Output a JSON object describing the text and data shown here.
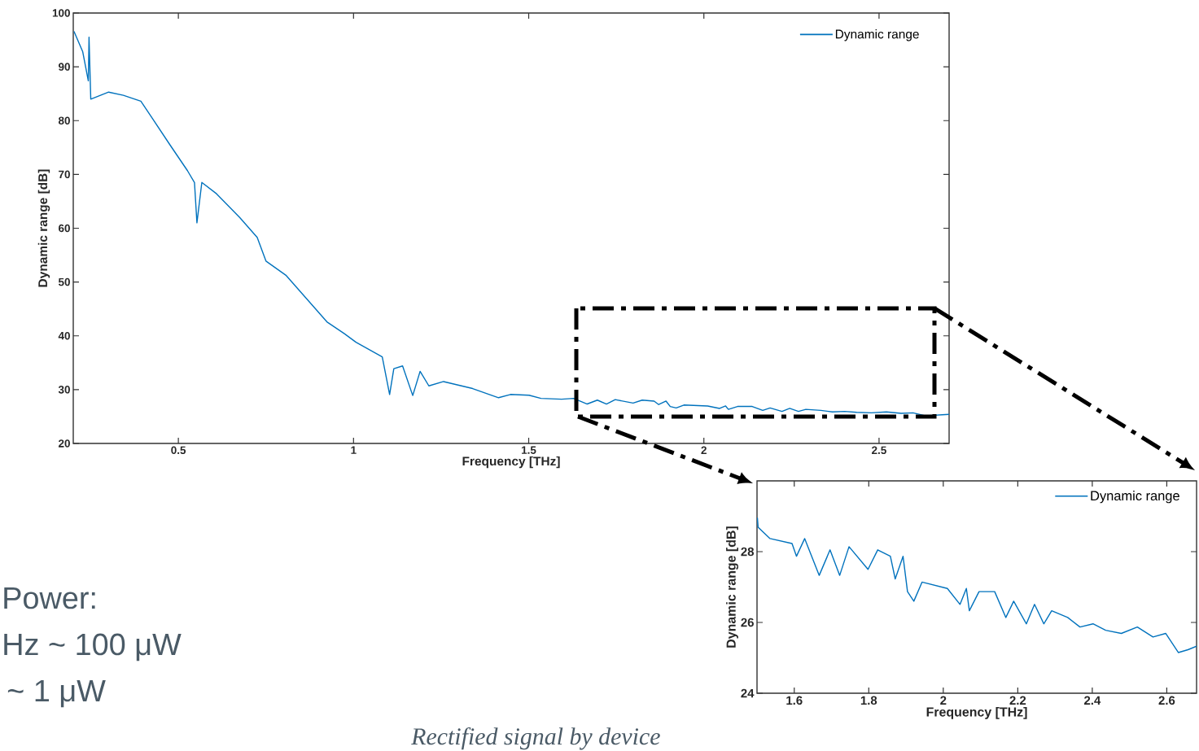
{
  "chart_data": [
    {
      "type": "line",
      "xlabel": "Frequency [THz]",
      "ylabel": "Dynamic range [dB]",
      "xlim": [
        0.2,
        2.7
      ],
      "ylim": [
        20,
        100
      ],
      "xticks": [
        0.5,
        1,
        1.5,
        2,
        2.5
      ],
      "yticks": [
        20,
        30,
        40,
        50,
        60,
        70,
        80,
        90,
        100
      ],
      "legend": "top right",
      "grid": false,
      "marker": "none",
      "line_style": "solid",
      "annotations": [
        "Power:",
        "Hz ~ 100 μW",
        "~ 1 μW",
        "Rectified signal by device"
      ],
      "series": [
        {
          "name": "Dynamic range",
          "color": "#0072bd",
          "x": [
            0.202,
            0.227,
            0.243,
            0.245,
            0.25,
            0.301,
            0.343,
            0.393,
            0.426,
            0.476,
            0.526,
            0.546,
            0.553,
            0.567,
            0.609,
            0.675,
            0.725,
            0.75,
            0.808,
            0.866,
            0.924,
            0.974,
            1.007,
            1.082,
            1.103,
            1.115,
            1.14,
            1.169,
            1.19,
            1.215,
            1.257,
            1.34,
            1.414,
            1.448,
            1.501,
            1.535,
            1.594,
            1.628,
            1.667,
            1.696,
            1.722,
            1.747,
            1.798,
            1.824,
            1.858,
            1.871,
            1.892,
            1.904,
            1.921,
            1.943,
            2.011,
            2.045,
            2.062,
            2.07,
            2.096,
            2.138,
            2.168,
            2.189,
            2.223,
            2.245,
            2.27,
            2.291,
            2.334,
            2.367,
            2.402,
            2.436,
            2.478,
            2.521,
            2.563,
            2.597,
            2.631,
            2.657,
            2.68,
            2.7
          ],
          "values": [
            96.6,
            92.8,
            87.4,
            95.5,
            84,
            85.3,
            84.7,
            83.6,
            80.4,
            75.5,
            70.7,
            68.5,
            61.0,
            68.5,
            66.4,
            62.0,
            58.3,
            53.9,
            51.2,
            46.9,
            42.6,
            40.4,
            38.8,
            36.1,
            29.1,
            33.9,
            34.4,
            28.9,
            33.4,
            30.7,
            31.5,
            30.2,
            28.5,
            29.1,
            28.96,
            28.37,
            28.23,
            28.37,
            27.33,
            28.05,
            27.33,
            28.14,
            27.5,
            28.05,
            27.87,
            27.23,
            27.87,
            26.87,
            26.6,
            27.14,
            26.96,
            26.51,
            26.96,
            26.33,
            26.87,
            26.87,
            26.14,
            26.6,
            25.96,
            26.51,
            25.96,
            26.33,
            26.14,
            25.87,
            25.96,
            25.78,
            25.69,
            25.87,
            25.59,
            25.69,
            25.15,
            25.23,
            25.33,
            25.4
          ]
        }
      ]
    },
    {
      "type": "line",
      "xlabel": "Frequency [THz]",
      "ylabel": "Dynamic range [dB]",
      "xlim": [
        1.5,
        2.68
      ],
      "ylim": [
        24,
        30
      ],
      "xticks": [
        1.6,
        1.8,
        2,
        2.2,
        2.4,
        2.6
      ],
      "yticks": [
        24,
        26,
        28
      ],
      "legend": "top right",
      "grid": false,
      "marker": "none",
      "line_style": "solid",
      "series": [
        {
          "name": "Dynamic range",
          "color": "#0072bd",
          "x": [
            1.501,
            1.503,
            1.535,
            1.594,
            1.606,
            1.628,
            1.667,
            1.696,
            1.722,
            1.747,
            1.798,
            1.824,
            1.858,
            1.871,
            1.892,
            1.904,
            1.921,
            1.943,
            2.011,
            2.045,
            2.062,
            2.07,
            2.096,
            2.138,
            2.168,
            2.189,
            2.223,
            2.245,
            2.27,
            2.291,
            2.334,
            2.367,
            2.402,
            2.436,
            2.478,
            2.521,
            2.563,
            2.597,
            2.631,
            2.657,
            2.68
          ],
          "values": [
            28.96,
            28.69,
            28.37,
            28.23,
            27.87,
            28.37,
            27.33,
            28.05,
            27.33,
            28.14,
            27.5,
            28.05,
            27.87,
            27.23,
            27.87,
            26.87,
            26.6,
            27.14,
            26.96,
            26.51,
            26.96,
            26.33,
            26.87,
            26.87,
            26.14,
            26.6,
            25.96,
            26.51,
            25.96,
            26.33,
            26.14,
            25.87,
            25.96,
            25.78,
            25.69,
            25.87,
            25.59,
            25.69,
            25.15,
            25.23,
            25.33
          ]
        }
      ]
    }
  ]
}
